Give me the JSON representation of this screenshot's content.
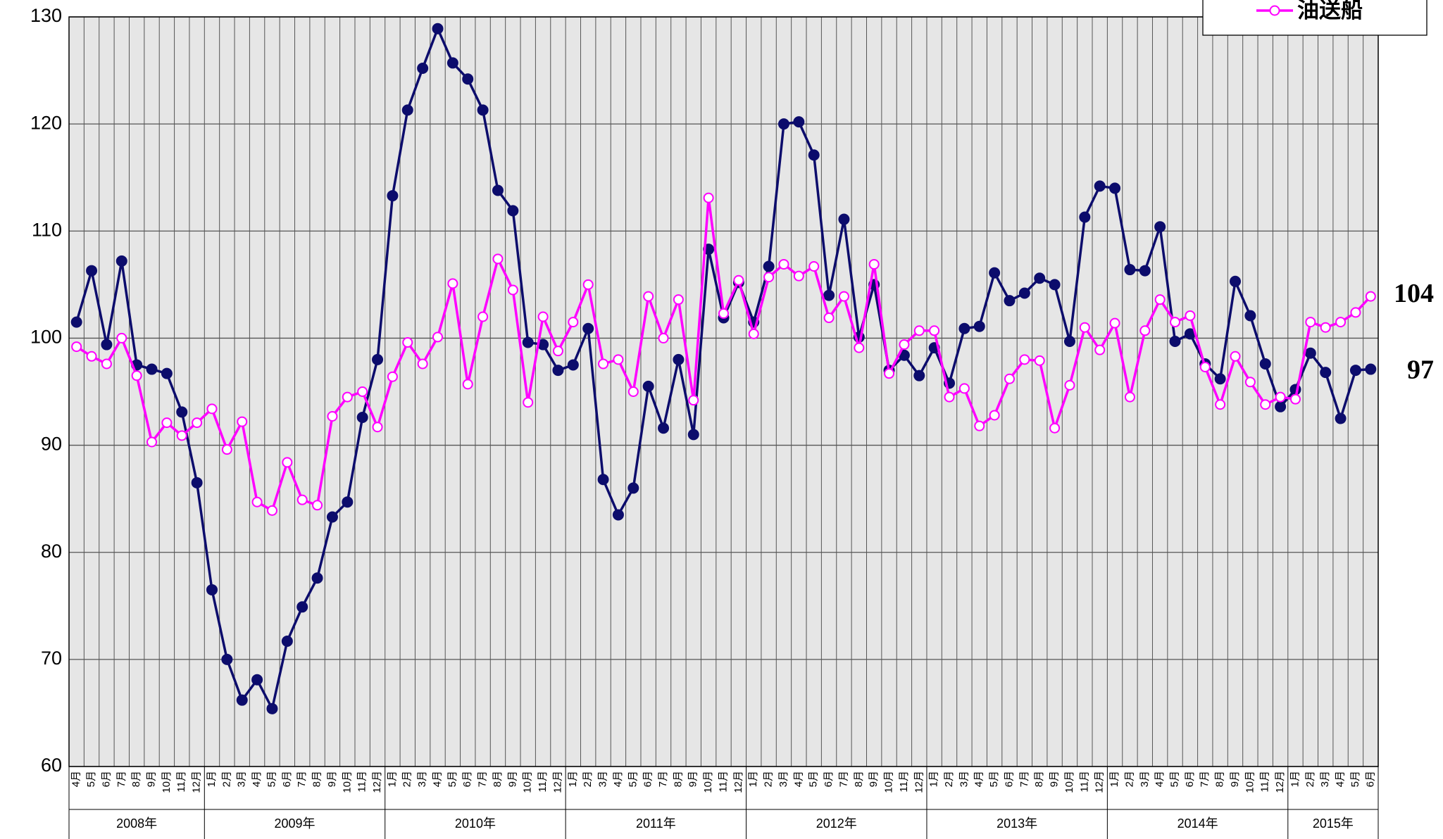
{
  "chart_data": {
    "type": "line",
    "groups": [
      {
        "label": "2008年",
        "categories": [
          "4月",
          "5月",
          "6月",
          "7月",
          "8月",
          "9月",
          "10月",
          "11月",
          "12月"
        ]
      },
      {
        "label": "2009年",
        "categories": [
          "1月",
          "2月",
          "3月",
          "4月",
          "5月",
          "6月",
          "7月",
          "8月",
          "9月",
          "10月",
          "11月",
          "12月"
        ]
      },
      {
        "label": "2010年",
        "categories": [
          "1月",
          "2月",
          "3月",
          "4月",
          "5月",
          "6月",
          "7月",
          "8月",
          "9月",
          "10月",
          "11月",
          "12月"
        ]
      },
      {
        "label": "2011年",
        "categories": [
          "1月",
          "2月",
          "3月",
          "4月",
          "5月",
          "6月",
          "7月",
          "8月",
          "9月",
          "10月",
          "11月",
          "12月"
        ]
      },
      {
        "label": "2012年",
        "categories": [
          "1月",
          "2月",
          "3月",
          "4月",
          "5月",
          "6月",
          "7月",
          "8月",
          "9月",
          "10月",
          "11月",
          "12月"
        ]
      },
      {
        "label": "2013年",
        "categories": [
          "1月",
          "2月",
          "3月",
          "4月",
          "5月",
          "6月",
          "7月",
          "8月",
          "9月",
          "10月",
          "11月",
          "12月"
        ]
      },
      {
        "label": "2014年",
        "categories": [
          "1月",
          "2月",
          "3月",
          "4月",
          "5月",
          "6月",
          "7月",
          "8月",
          "9月",
          "10月",
          "11月",
          "12月"
        ]
      },
      {
        "label": "2015年",
        "categories": [
          "1月",
          "2月",
          "3月",
          "4月",
          "5月",
          "6月"
        ]
      }
    ],
    "series": [
      {
        "color": "#0c0c6c",
        "marker": "filled",
        "last_label": "97",
        "last_label_color": "#0000ff",
        "values": [
          101.5,
          106.3,
          99.4,
          107.2,
          97.5,
          97.1,
          96.7,
          93.1,
          86.5,
          76.5,
          70.0,
          66.2,
          68.1,
          65.4,
          71.7,
          74.9,
          77.6,
          83.3,
          84.7,
          92.6,
          98.0,
          113.3,
          121.3,
          125.2,
          128.9,
          125.7,
          124.2,
          121.3,
          113.8,
          111.9,
          99.6,
          99.4,
          97.0,
          97.5,
          100.9,
          86.8,
          83.5,
          86.0,
          95.5,
          91.6,
          98.0,
          91.0,
          108.3,
          101.9,
          105.2,
          101.5,
          106.7,
          120.0,
          120.2,
          117.1,
          104.0,
          111.1,
          100.1,
          105.0,
          97.0,
          98.4,
          96.5,
          99.1,
          95.8,
          100.9,
          101.1,
          106.1,
          103.5,
          104.2,
          105.6,
          105.0,
          99.7,
          111.3,
          114.2,
          114.0,
          106.4,
          106.3,
          110.4,
          99.7,
          100.4,
          97.6,
          96.2,
          105.3,
          102.1,
          97.6,
          93.6,
          95.2,
          98.6,
          96.8,
          92.5,
          97.0,
          97.1
        ]
      },
      {
        "name": "油送船",
        "color": "#ff00ff",
        "marker": "open",
        "last_label": "104",
        "last_label_color": "#ff00ff",
        "values": [
          99.2,
          98.3,
          97.6,
          100.0,
          96.5,
          90.3,
          92.1,
          90.9,
          92.1,
          93.4,
          89.6,
          92.2,
          84.7,
          83.9,
          88.4,
          84.9,
          84.4,
          92.7,
          94.5,
          95.0,
          91.7,
          96.4,
          99.6,
          97.6,
          100.1,
          105.1,
          95.7,
          102.0,
          107.4,
          104.5,
          94.0,
          102.0,
          98.8,
          101.5,
          105.0,
          97.6,
          98.0,
          95.0,
          103.9,
          100.0,
          103.6,
          94.2,
          113.1,
          102.3,
          105.4,
          100.4,
          105.7,
          106.9,
          105.8,
          106.7,
          101.9,
          103.9,
          99.1,
          106.9,
          96.7,
          99.4,
          100.7,
          100.7,
          94.5,
          95.3,
          91.8,
          92.8,
          96.2,
          98.0,
          97.9,
          91.6,
          95.6,
          101.0,
          98.9,
          101.4,
          94.5,
          100.7,
          103.6,
          101.5,
          102.1,
          97.3,
          93.8,
          98.3,
          95.9,
          93.8,
          94.5,
          94.3,
          101.5,
          101.0,
          101.5,
          102.4,
          103.9
        ]
      }
    ],
    "ylim": [
      60,
      130
    ],
    "yticks": [
      60,
      70,
      80,
      90,
      100,
      110,
      120,
      130
    ],
    "grid": true,
    "legend": "top-right"
  }
}
